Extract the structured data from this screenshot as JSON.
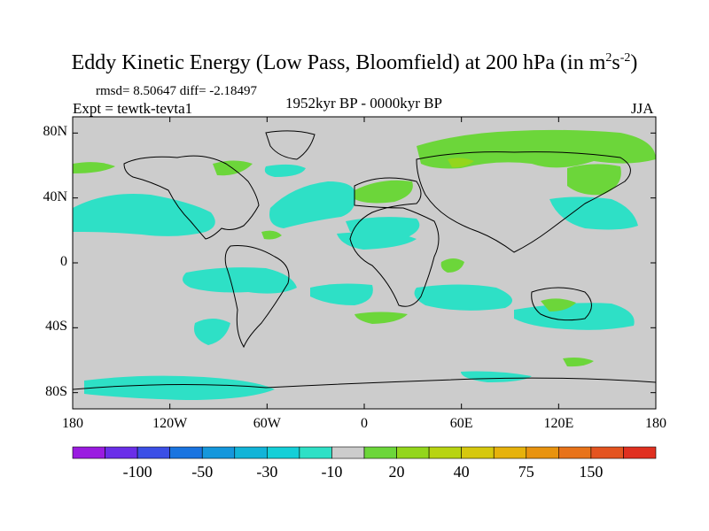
{
  "title": {
    "main": "Eddy Kinetic Energy (Low Pass, Bloomfield) at 200 hPa (in m",
    "exp1": "2",
    "mid": "s",
    "exp2": "-2",
    "end": ")"
  },
  "stats_text": "rmsd= 8.50647 diff= -2.18497",
  "experiment_text": "Expt = tewtk-tevta1",
  "period_text": "1952kyr BP - 0000kyr BP",
  "season_text": "JJA",
  "lat_labels": [
    "80N",
    "40N",
    "0",
    "40S",
    "80S"
  ],
  "lon_labels": [
    "180",
    "120W",
    "60W",
    "0",
    "60E",
    "120E",
    "180"
  ],
  "colorbar": {
    "colors": [
      "#9a1be0",
      "#6a2ee8",
      "#3b4fe6",
      "#1a74e0",
      "#1597dc",
      "#12b4d8",
      "#14cfd8",
      "#2ee0c6",
      "#cccccc",
      "#6cd63a",
      "#93d61c",
      "#b8d412",
      "#d6c80e",
      "#e6b20c",
      "#e8930f",
      "#e8731a",
      "#e45420",
      "#e03020"
    ],
    "labels": [
      "-100",
      "-50",
      "-30",
      "-10",
      "20",
      "40",
      "75",
      "150"
    ]
  },
  "map": {
    "background_color": "#cccccc",
    "cyan_color": "#2ee0c6",
    "green_color": "#6cd63a",
    "lightgreen_color": "#93d61c"
  }
}
